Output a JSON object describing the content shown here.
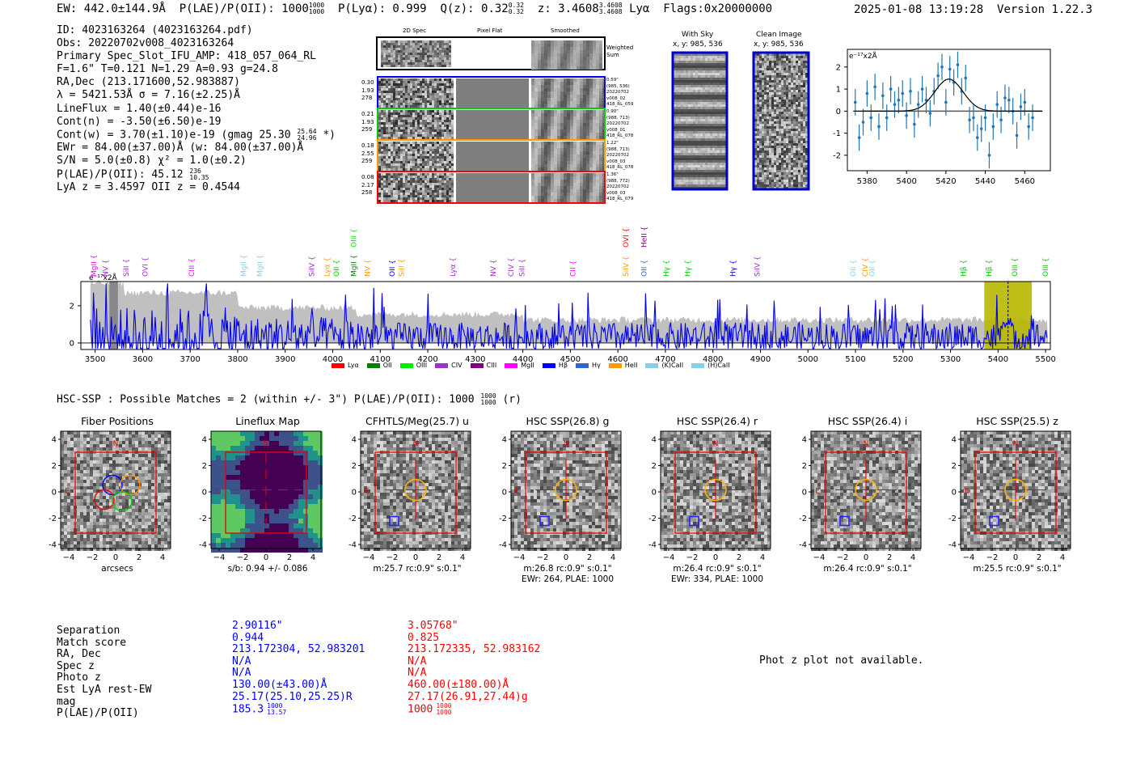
{
  "header": {
    "ew": "EW: 442.0±144.9Å",
    "plae_label": "P(LAE)/P(OII): 1000",
    "plae_hi": "1000",
    "plae_lo": "1000",
    "plya": "P(Lyα): 0.999",
    "qz_label": "Q(z): 0.32",
    "qz_hi": "0.32",
    "qz_lo": "0.32",
    "z_label": "z: 3.4608",
    "z_hi": "3.4608",
    "z_lo": "3.4608",
    "z_line": "Lyα",
    "flags": "Flags:0x20000000",
    "timestamp": "2025-01-08 13:19:28",
    "version": "Version 1.22.3"
  },
  "info": {
    "lines": [
      "ID: 4023163264 (4023163264.pdf)",
      "Obs: 20220702v008_4023163264",
      "Primary Spec_Slot_IFU_AMP: 418_057_064_RL",
      "F=1.6\"  T=0.121  N=1.29  A=0.93  g=24.8",
      "RA,Dec (213.171600,52.983887)",
      "λ = 5421.53Å  σ = 7.16(±2.25)Å",
      "LineFlux = 1.40(±0.44)e-16",
      "Cont(n) = -3.50(±6.50)e-19"
    ],
    "contw": "Cont(w) = 3.70(±1.10)e-19 (gmag 25.30",
    "contw_hi": "25.64",
    "contw_lo": "24.96",
    "contw_end": "*)",
    "ewr": "EWr = 84.00(±37.00)Å (w: 84.00(±37.00)Å",
    "sn": "S/N = 5.0(±0.8)  χ² = 1.0(±0.2)",
    "plae": "P(LAE)/P(OII): 45.12",
    "plae_hi": "236",
    "plae_lo": "10.35",
    "lyaz": "LyA z = 3.4597  OII z = 0.4544"
  },
  "cutouts": {
    "col_titles": [
      "2D Spec",
      "Pixel Flat",
      "Smoothed"
    ],
    "weighted_sum": [
      "Weighted",
      "Sum"
    ],
    "rows": [
      {
        "left": [
          "0.30",
          "1.93",
          "278"
        ],
        "right": [
          "0.59\"",
          "(985, 536)",
          "20220702",
          "v008_02",
          "418_RL_059"
        ],
        "color": "#0000ff"
      },
      {
        "left": [
          "0.21",
          "1.93",
          "259"
        ],
        "right": [
          "0.90\"",
          "(988, 713)",
          "20220702",
          "v008_01",
          "418_RL_078"
        ],
        "color": "#00cc00"
      },
      {
        "left": [
          "0.18",
          "2.55",
          "259"
        ],
        "right": [
          "1.22\"",
          "(988, 713)",
          "20220702",
          "v008_03",
          "418_RL_078"
        ],
        "color": "#ff9900"
      },
      {
        "left": [
          "0.08",
          "2.17",
          "258"
        ],
        "right": [
          "1.36\"",
          "(988, 772)",
          "20220702",
          "v008_03",
          "418_RL_079"
        ],
        "color": "#ff0000"
      }
    ],
    "with_sky_title": "With Sky",
    "with_sky_xy": "x, y: 985, 536",
    "clean_title": "Clean Image",
    "clean_xy": "x, y: 985, 536"
  },
  "line_fit_chart": {
    "type": "scatter",
    "unit_label": "e⁻¹⁷x2Å",
    "x_ticks": [
      "5380",
      "5400",
      "5420",
      "5440",
      "5460"
    ],
    "y_ticks": [
      "2",
      "1",
      "0",
      "-1",
      "-2"
    ],
    "xlim": [
      5370,
      5473
    ],
    "ylim": [
      -2.7,
      2.8
    ],
    "x": [
      5374,
      5376,
      5378,
      5380,
      5382,
      5384,
      5386,
      5388,
      5390,
      5392,
      5394,
      5396,
      5398,
      5400,
      5402,
      5404,
      5406,
      5408,
      5410,
      5412,
      5414,
      5416,
      5418,
      5420,
      5422,
      5424,
      5426,
      5428,
      5430,
      5432,
      5434,
      5436,
      5438,
      5440,
      5442,
      5444,
      5446,
      5448,
      5450,
      5452,
      5454,
      5456,
      5458,
      5460,
      5462,
      5464
    ],
    "y": [
      0.4,
      -1.2,
      -0.5,
      0.8,
      -0.3,
      1.1,
      -0.7,
      0.7,
      -0.3,
      1.0,
      0.3,
      0.5,
      0.8,
      -0.2,
      0.9,
      -0.6,
      0.3,
      1.0,
      0.5,
      -0.1,
      0.9,
      1.6,
      2.0,
      0.4,
      1.9,
      1.3,
      2.1,
      0.9,
      1.5,
      -0.4,
      -0.3,
      -1.2,
      -0.8,
      -0.3,
      -2.0,
      -0.7,
      0.3,
      -0.4,
      0.6,
      0.5,
      0.0,
      -1.1,
      0.2,
      0.4,
      -0.7,
      -0.3
    ],
    "err": [
      0.6,
      0.6,
      0.6,
      0.6,
      0.6,
      0.6,
      0.6,
      0.6,
      0.6,
      0.6,
      0.6,
      0.6,
      0.6,
      0.6,
      0.6,
      0.6,
      0.6,
      0.6,
      0.6,
      0.6,
      0.6,
      0.6,
      0.6,
      0.6,
      0.6,
      0.6,
      0.6,
      0.6,
      0.6,
      0.6,
      0.6,
      0.6,
      0.6,
      0.6,
      0.6,
      0.6,
      0.6,
      0.6,
      0.6,
      0.6,
      0.6,
      0.6,
      0.6,
      0.6,
      0.6,
      0.6
    ],
    "fit": {
      "amp": 1.45,
      "center": 5421.5,
      "sigma": 7.16
    }
  },
  "spectrum_chart": {
    "type": "line",
    "unit_label": "e⁻¹⁷x2Å",
    "x_ticks": [
      "3500",
      "3600",
      "3700",
      "3800",
      "3900",
      "4000",
      "4100",
      "4200",
      "4300",
      "4400",
      "4500",
      "4600",
      "4700",
      "4800",
      "4900",
      "5000",
      "5100",
      "5200",
      "5300",
      "5400",
      "5500"
    ],
    "y_ticks": [
      "2",
      "0"
    ],
    "xlim": [
      3470,
      5510
    ],
    "ylim": [
      -0.35,
      3.3
    ],
    "line_labels": [
      {
        "name": "MgII",
        "x": 3497,
        "color": "#ff00ff"
      },
      {
        "name": "NV",
        "x": 3522,
        "color": "#9933cc"
      },
      {
        "name": "SiII",
        "x": 3565,
        "color": "#9933cc"
      },
      {
        "name": "OVI",
        "x": 3605,
        "color": "#9933cc"
      },
      {
        "name": "CIII",
        "x": 3703,
        "color": "#ff00ff"
      },
      {
        "name": "MgII",
        "x": 3813,
        "color": "#87ceeb"
      },
      {
        "name": "MgII",
        "x": 3847,
        "color": "#87ceeb"
      },
      {
        "name": "SiIV",
        "x": 3956,
        "color": "#9933cc"
      },
      {
        "name": "Lyα",
        "x": 3988,
        "color": "#ff9900"
      },
      {
        "name": "OII",
        "x": 4008,
        "color": "#00cc00"
      },
      {
        "name": "MgII",
        "x": 4044,
        "color": "#008000"
      },
      {
        "name": "OIII",
        "x": 4044,
        "color": "#00ee00"
      },
      {
        "name": "NV",
        "x": 4073,
        "color": "#ff9900"
      },
      {
        "name": "OII",
        "x": 4125,
        "color": "#0000ff"
      },
      {
        "name": "SiII",
        "x": 4145,
        "color": "#ff9900"
      },
      {
        "name": "Lyα",
        "x": 4253,
        "color": "#9933cc"
      },
      {
        "name": "NV",
        "x": 4338,
        "color": "#9933cc"
      },
      {
        "name": "CIV",
        "x": 4375,
        "color": "#9933cc"
      },
      {
        "name": "SiII",
        "x": 4398,
        "color": "#9933cc"
      },
      {
        "name": "CII",
        "x": 4505,
        "color": "#ff00ff"
      },
      {
        "name": "SiIV",
        "x": 4617,
        "color": "#ff9900"
      },
      {
        "name": "OVI",
        "x": 4617,
        "color": "#ff0000"
      },
      {
        "name": "OII",
        "x": 4655,
        "color": "#3366cc"
      },
      {
        "name": "HeII",
        "x": 4655,
        "color": "#660066"
      },
      {
        "name": "Hγ",
        "x": 4702,
        "color": "#00cc00"
      },
      {
        "name": "Hγ",
        "x": 4747,
        "color": "#00cc00"
      },
      {
        "name": "Hγ",
        "x": 4842,
        "color": "#0000cc"
      },
      {
        "name": "SiIV",
        "x": 4893,
        "color": "#9933cc"
      },
      {
        "name": "OII",
        "x": 5095,
        "color": "#87ceeb"
      },
      {
        "name": "CIV",
        "x": 5120,
        "color": "#ff9900"
      },
      {
        "name": "OII",
        "x": 5135,
        "color": "#87ceeb"
      },
      {
        "name": "Hβ",
        "x": 5327,
        "color": "#00cc00"
      },
      {
        "name": "Hβ",
        "x": 5381,
        "color": "#00cc00"
      },
      {
        "name": "OIII",
        "x": 5435,
        "color": "#00cc00"
      },
      {
        "name": "OIII",
        "x": 5543,
        "color": "#00cc00"
      }
    ],
    "highlight_range": [
      5371,
      5471
    ],
    "legend": [
      {
        "name": "Lyα",
        "color": "#ff0000"
      },
      {
        "name": "OII",
        "color": "#008000"
      },
      {
        "name": "OIII",
        "color": "#00ee00"
      },
      {
        "name": "CIV",
        "color": "#9933cc"
      },
      {
        "name": "CIII",
        "color": "#800080"
      },
      {
        "name": "MgII",
        "color": "#ff00ff"
      },
      {
        "name": "Hβ",
        "color": "#0000ff"
      },
      {
        "name": "Hγ",
        "color": "#3366cc"
      },
      {
        "name": "HeII",
        "color": "#ff9900"
      },
      {
        "name": "(K)CaII",
        "color": "#87ceeb"
      },
      {
        "name": "(H)CaII",
        "color": "#87ceeb"
      }
    ]
  },
  "hsc": {
    "title": "HSC-SSP : Possible Matches = 2 (within +/- 3\")  P(LAE)/P(OII): 1000",
    "title_hi": "1000",
    "title_lo": "1000",
    "title_end": "(r)",
    "panels": [
      {
        "title": "Fiber Positions",
        "caption": [
          "arcsecs"
        ],
        "type": "fiber"
      },
      {
        "title": "Lineflux Map",
        "caption": [
          "s/b: 0.94 +/- 0.086"
        ],
        "type": "flux"
      },
      {
        "title": "CFHTLS/Meg(25.7) u",
        "caption": [
          "m:25.7 rc:0.9\"  s:0.1\""
        ],
        "type": "img"
      },
      {
        "title": "HSC SSP(26.8) g",
        "caption": [
          "m:26.8 rc:0.9\"  s:0.1\"",
          "EWr: 264, PLAE: 1000"
        ],
        "type": "img"
      },
      {
        "title": "HSC SSP(26.4) r",
        "caption": [
          "m:26.4 rc:0.9\"  s:0.1\"",
          "EWr: 334, PLAE: 1000"
        ],
        "type": "img"
      },
      {
        "title": "HSC SSP(26.4) i",
        "caption": [
          "m:26.4 rc:0.9\"  s:0.1\""
        ],
        "type": "img"
      },
      {
        "title": "HSC SSP(25.5) z",
        "caption": [
          "m:25.5 rc:0.9\"  s:0.1\""
        ],
        "type": "img"
      }
    ],
    "axis_ticks": [
      "4",
      "2",
      "0",
      "-2",
      "-4"
    ],
    "x_ticks": [
      "−4",
      "−2",
      "0",
      "2",
      "4"
    ],
    "compass_n": "N",
    "compass_e": "E"
  },
  "matches": {
    "labels": [
      "Separation",
      "Match score",
      "RA, Dec",
      "Spec z",
      "Photo z",
      "Est LyA rest-EW",
      "mag",
      "P(LAE)/P(OII)"
    ],
    "blue": [
      "2.90116\"",
      "0.944",
      "213.172304, 52.983201",
      "N/A",
      "N/A",
      "130.00(±43.00)Å",
      "25.17(25.10,25.25)R",
      "185.3"
    ],
    "blue_plae_hi": "1000",
    "blue_plae_lo": "13.57",
    "red": [
      "3.05768\"",
      "0.825",
      "213.172335, 52.983162",
      "N/A",
      "N/A",
      "460.00(±180.00)Å",
      "27.17(26.91,27.44)g",
      "1000"
    ],
    "red_plae_hi": "1000",
    "red_plae_lo": "1000",
    "photz_note": "Phot z plot not available."
  }
}
